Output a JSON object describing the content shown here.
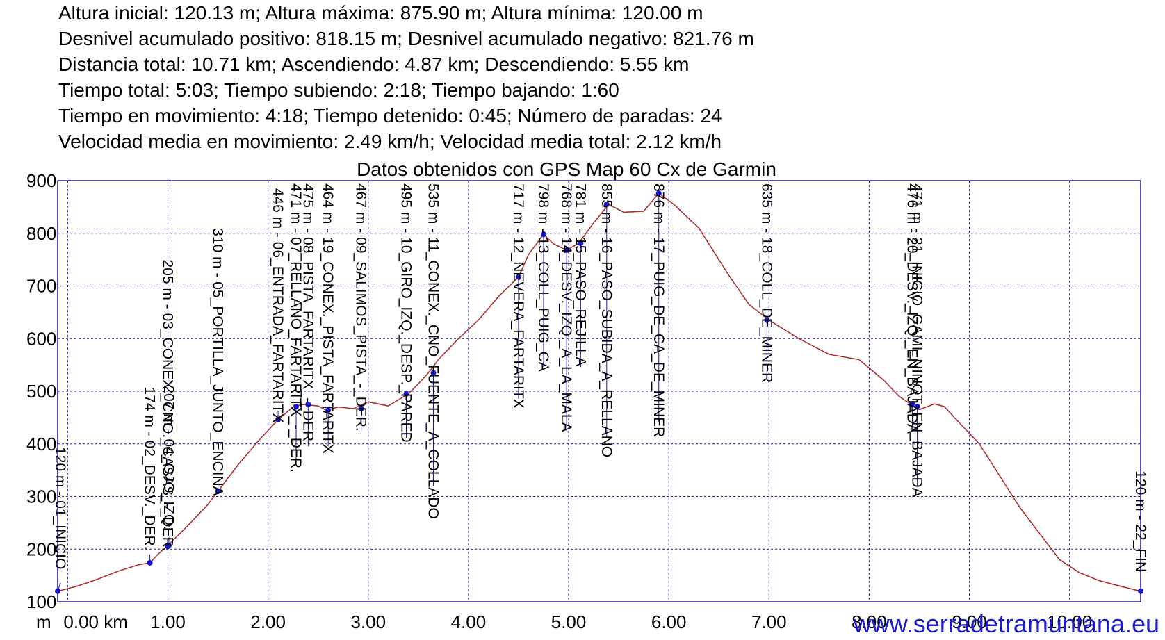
{
  "stats": [
    "Altura inicial: 120.13 m; Altura máxima: 875.90 m; Altura mínima: 120.00 m",
    "Desnivel acumulado positivo: 818.15 m; Desnivel acumulado negativo: 821.76 m",
    "Distancia total: 10.71 km; Ascendiendo: 4.87 km; Descendiendo: 5.55 km",
    "Tiempo total: 5:03; Tiempo subiendo: 2:18; Tiempo bajando: 1:60",
    "Tiempo en movimiento: 4:18; Tiempo detenido: 0:45; Número de paradas: 24",
    "Velocidad media en movimiento: 2.49 km/h; Velocidad media total: 2.12 km/h"
  ],
  "watermark": "www.serradetramuntana.eu",
  "colors": {
    "profile": "#b03030",
    "points": "#1515cc",
    "grid": "#1a1aa0",
    "frame": "#1a1aa0",
    "leader": "#1515aa",
    "watermark": "#1b1bd0"
  },
  "chart_data": {
    "type": "line",
    "title": "Datos obtenidos con GPS Map 60 Cx de Garmin",
    "xlabel": "",
    "ylabel": "",
    "xlim": [
      -0.1,
      10.71
    ],
    "ylim": [
      100,
      900
    ],
    "x_unit_label": "m",
    "x_ticks": [
      0,
      1,
      2,
      3,
      4,
      5,
      6,
      7,
      8,
      9,
      10
    ],
    "x_tick_labels": [
      "0.00 km",
      "1.00",
      "2.00",
      "3.00",
      "4.00",
      "5.00",
      "6.00",
      "7.00",
      "8.00",
      "9.00",
      "10.00"
    ],
    "y_ticks": [
      100,
      200,
      300,
      400,
      500,
      600,
      700,
      800,
      900
    ],
    "y_tick_labels": [
      "100",
      "200",
      "300",
      "400",
      "500",
      "600",
      "700",
      "800",
      "900"
    ],
    "grid": true,
    "series": [
      {
        "x": [
          -0.1,
          0.1,
          0.3,
          0.5,
          0.7,
          0.82,
          0.9,
          1.0,
          1.2,
          1.4,
          1.5,
          1.7,
          1.9,
          2.1,
          2.25,
          2.35,
          2.5,
          2.58,
          2.7,
          2.85,
          3.0,
          3.2,
          3.4,
          3.53,
          3.6,
          3.7,
          3.9,
          4.1,
          4.3,
          4.5,
          4.6,
          4.75,
          4.85,
          4.98,
          5.1,
          5.25,
          5.4,
          5.55,
          5.75,
          5.9,
          6.05,
          6.3,
          6.6,
          6.8,
          7.0,
          7.3,
          7.6,
          7.9,
          8.15,
          8.3,
          8.5,
          8.65,
          8.75,
          8.9,
          9.1,
          9.3,
          9.5,
          9.7,
          9.9,
          10.1,
          10.3,
          10.5,
          10.71
        ],
        "y": [
          120,
          130,
          143,
          158,
          170,
          174,
          190,
          207,
          245,
          285,
          310,
          360,
          405,
          446,
          470,
          475,
          472,
          464,
          470,
          467,
          480,
          472,
          495,
          520,
          535,
          560,
          600,
          635,
          680,
          717,
          760,
          798,
          780,
          768,
          781,
          820,
          855,
          840,
          842,
          876,
          855,
          810,
          720,
          665,
          635,
          600,
          570,
          560,
          520,
          490,
          465,
          476,
          471,
          440,
          400,
          340,
          280,
          230,
          180,
          155,
          140,
          130,
          120
        ]
      }
    ],
    "waypoints": [
      {
        "x": -0.1,
        "y": 120,
        "label": "120 m - 01_INICIO"
      },
      {
        "x": 0.82,
        "y": 174,
        "label": "174 m - 02_DESV._DER."
      },
      {
        "x": 1.0,
        "y": 205,
        "label": "205 m - 03_CONEX._CNO._CASAS_-_DER."
      },
      {
        "x": 1.01,
        "y": 207,
        "label": "207 m - 04_OJO_IZQ."
      },
      {
        "x": 1.5,
        "y": 310,
        "label": "310 m - 05_PORTILLA_JUNTO_ENCINA"
      },
      {
        "x": 2.1,
        "y": 446,
        "label": "446 m - 06_ENTRADA_FARTARITX"
      },
      {
        "x": 2.28,
        "y": 471,
        "label": "471 m - 07_RELLANO_FARTARITX_-_DER."
      },
      {
        "x": 2.4,
        "y": 475,
        "label": "475 m - 08_PISTA_FARTARITX_-_DER."
      },
      {
        "x": 2.6,
        "y": 464,
        "label": "464 m - 19_CONEX._PISTA_FARTARITX"
      },
      {
        "x": 2.93,
        "y": 467,
        "label": "467 m - 09_SALIMOS_PISTA_-_DER."
      },
      {
        "x": 3.38,
        "y": 495,
        "label": "495 m - 10_GIRO_IZQ._DESP._PARED"
      },
      {
        "x": 3.65,
        "y": 535,
        "label": "535 m - 11_CONEX._CNO_FUENTE_A_COLLADO"
      },
      {
        "x": 4.5,
        "y": 717,
        "label": "717 m - 12_NEVERA_FARTARITX"
      },
      {
        "x": 4.75,
        "y": 798,
        "label": "798 m - 13_COLL_PUIG_CA"
      },
      {
        "x": 4.98,
        "y": 768,
        "label": "768 m - 14_DESV._IZQ._A_LA_MALA"
      },
      {
        "x": 5.12,
        "y": 781,
        "label": "781 m - 15_PASO_REJILLA"
      },
      {
        "x": 5.38,
        "y": 855,
        "label": "855 m - 16_PASO_SUBIDA_A_RELLANO"
      },
      {
        "x": 5.9,
        "y": 876,
        "label": "876 m - 17_PUIG_DE_CA_DE_MINER"
      },
      {
        "x": 6.98,
        "y": 635,
        "label": "635 m - 18_COLL_DE_MINER"
      },
      {
        "x": 8.43,
        "y": 476,
        "label": "476 m - 20_DESV._IZQ._EN_BAJADA"
      },
      {
        "x": 8.48,
        "y": 471,
        "label": "471 m - 21_INICIO_CAMI_NINOT_EN_BAJADA"
      },
      {
        "x": 10.71,
        "y": 120,
        "label": "120 m - 22_FIN"
      }
    ]
  }
}
